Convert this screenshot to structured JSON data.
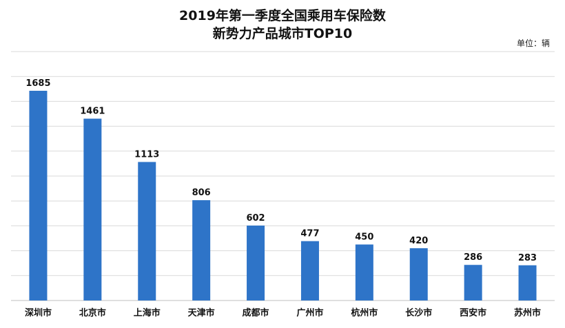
{
  "chart_data": {
    "type": "bar",
    "title_line1": "2019年第一季度全国乘用车保险数",
    "title_line2": "新势力产品城市TOP10",
    "unit_label": "单位：辆",
    "categories": [
      "深圳市",
      "北京市",
      "上海市",
      "天津市",
      "成都市",
      "广州市",
      "杭州市",
      "长沙市",
      "西安市",
      "苏州市"
    ],
    "values": [
      1685,
      1461,
      1113,
      806,
      602,
      477,
      450,
      420,
      286,
      283
    ],
    "value_labels": [
      "1685",
      "1461",
      "1113",
      "806",
      "602",
      "477",
      "450",
      "420",
      "286",
      "283"
    ],
    "ylim": [
      0,
      2000
    ],
    "grid": true,
    "bar_color": "#2e74c8",
    "grid_color": "#d9d9d9",
    "axis_color": "#bfbfbf"
  }
}
